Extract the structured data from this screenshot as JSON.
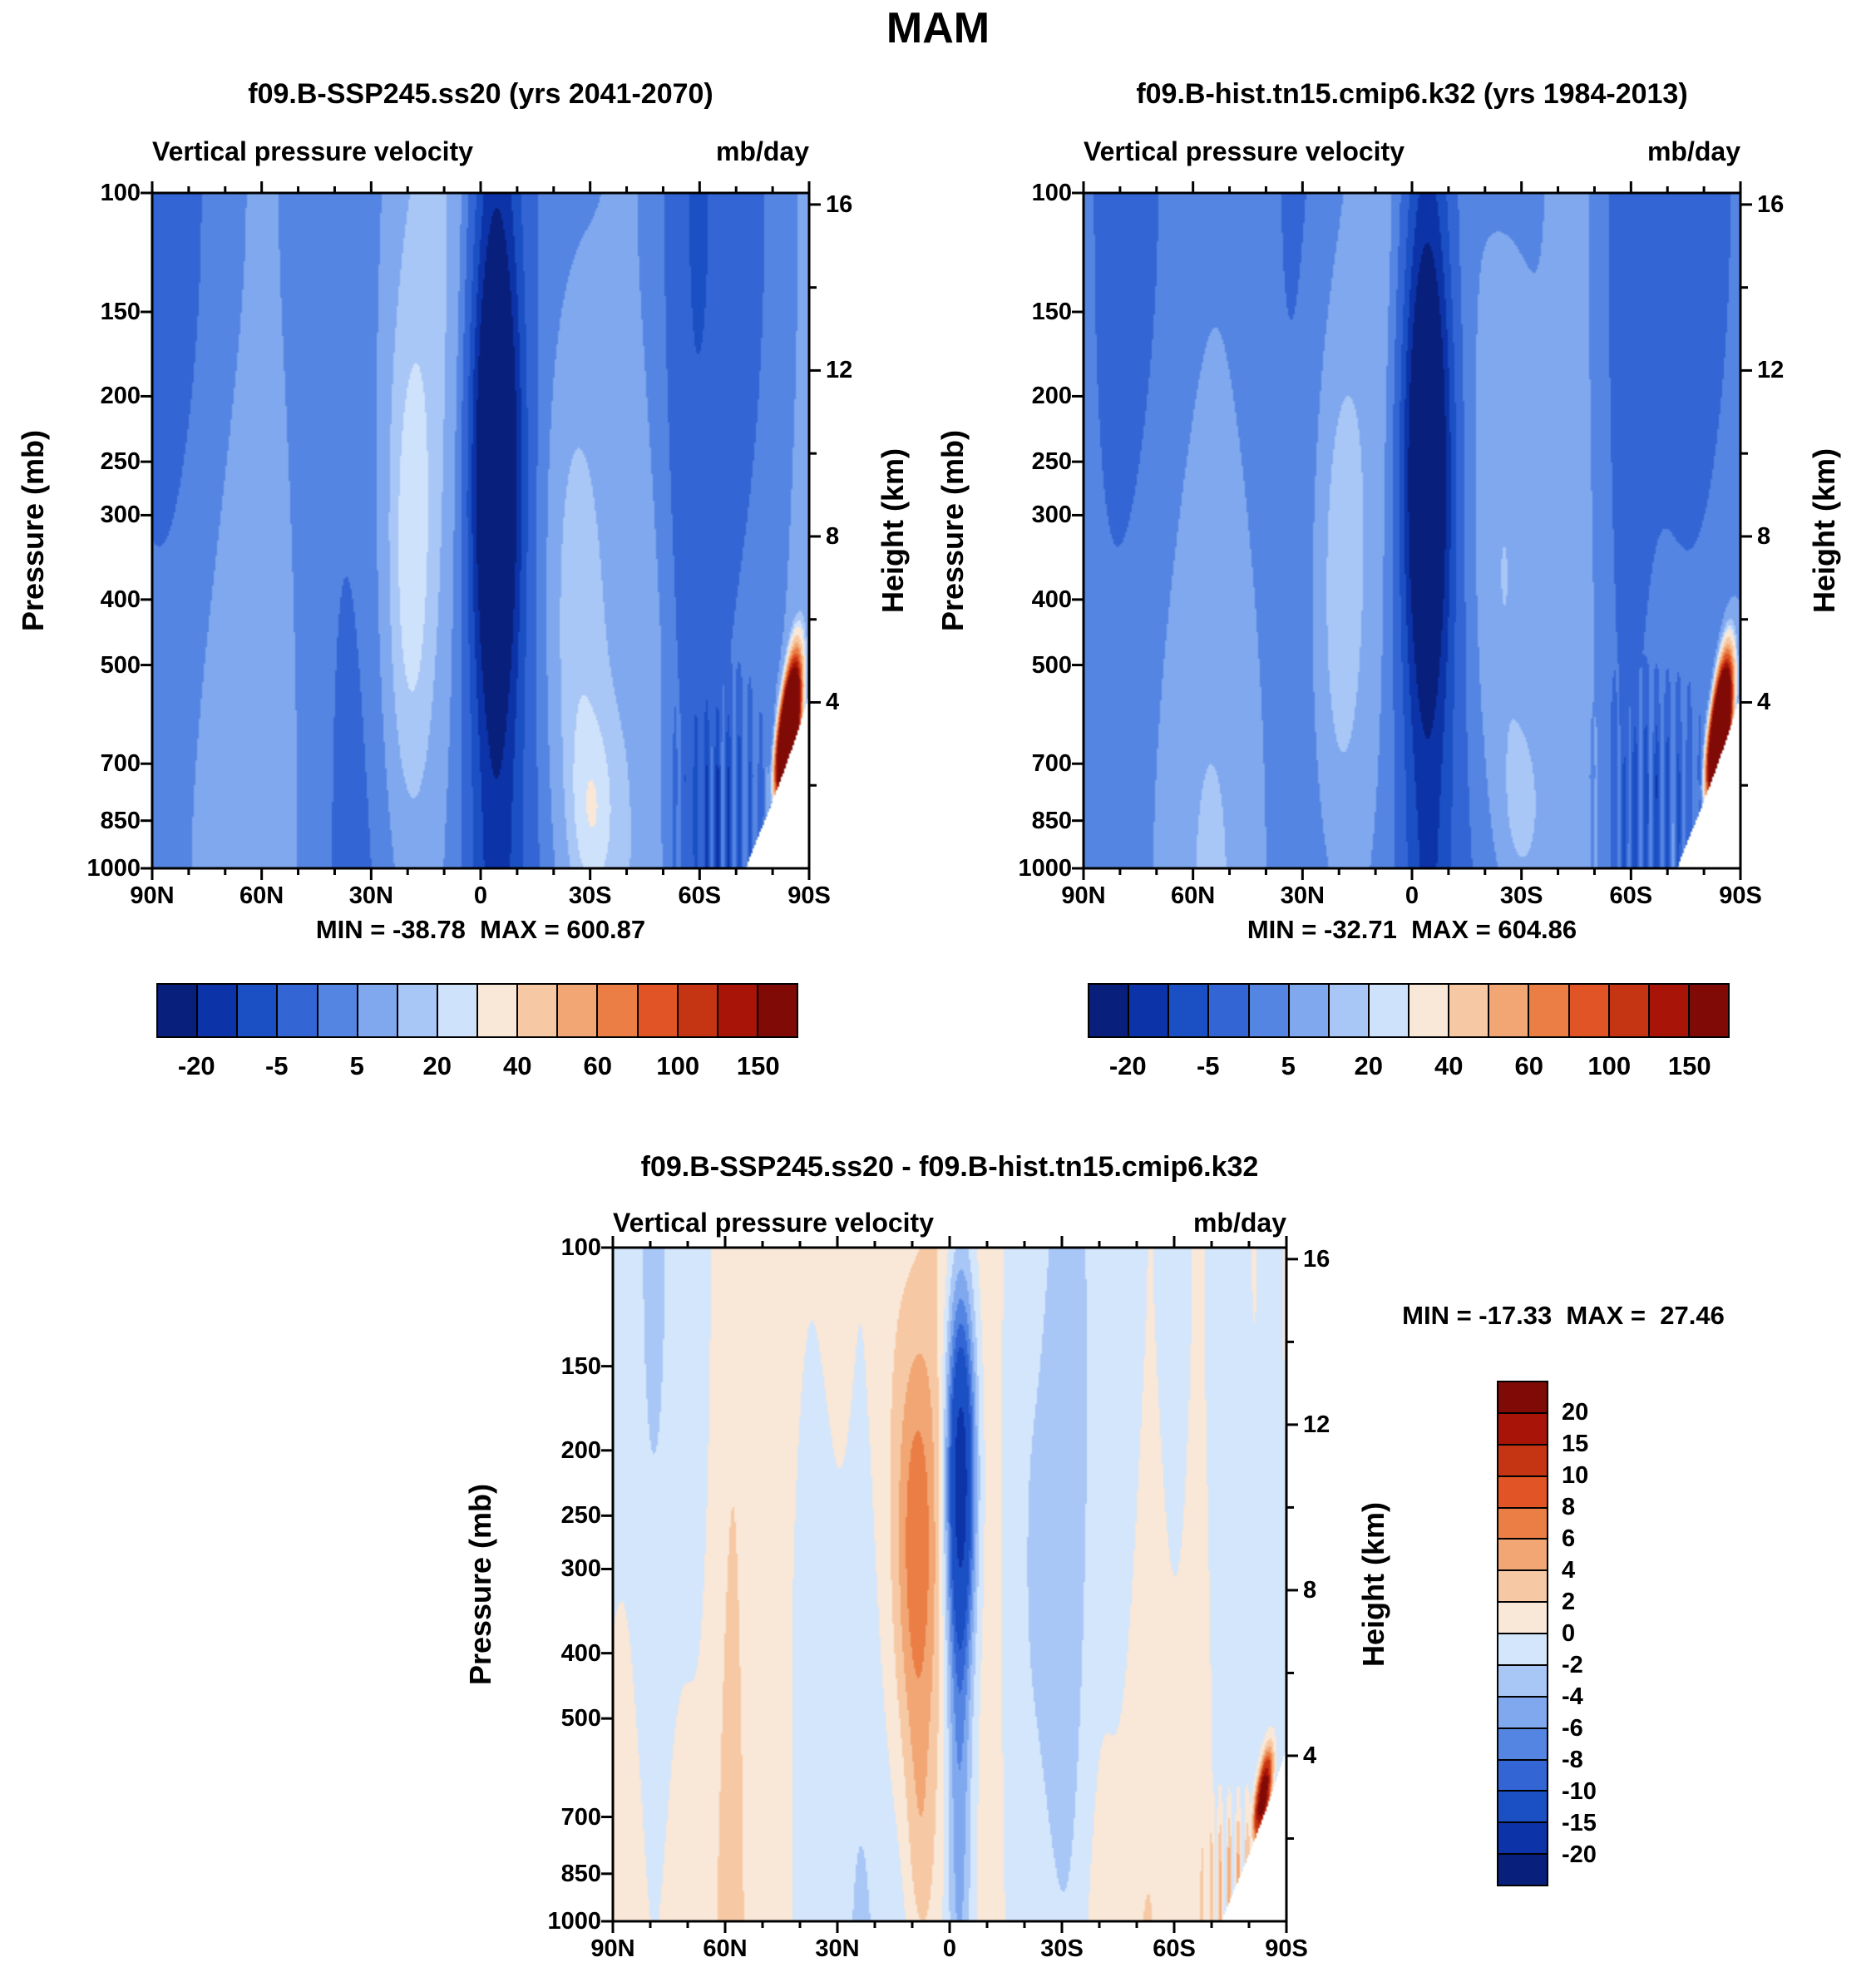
{
  "figure_title": "MAM",
  "panels": [
    {
      "title": "f09.B-SSP245.ss20 (yrs 2041-2070)",
      "subtitle_left": "Vertical pressure velocity",
      "units": "mb/day",
      "ylabel": "Pressure (mb)",
      "ylabel_right": "Height (km)",
      "minmax": "MIN = -38.78  MAX = 600.87"
    },
    {
      "title": "f09.B-hist.tn15.cmip6.k32 (yrs 1984-2013)",
      "subtitle_left": "Vertical pressure velocity",
      "units": "mb/day",
      "ylabel": "Pressure (mb)",
      "ylabel_right": "Height (km)",
      "minmax": "MIN = -32.71  MAX = 604.86"
    },
    {
      "title": "f09.B-SSP245.ss20 - f09.B-hist.tn15.cmip6.k32",
      "subtitle_left": "Vertical pressure velocity",
      "units": "mb/day",
      "ylabel": "Pressure (mb)",
      "ylabel_right": "Height (km)",
      "minmax": "MIN = -17.33  MAX =  27.46"
    }
  ],
  "axes": {
    "pressure_ticks": [
      "100",
      "150",
      "200",
      "250",
      "300",
      "400",
      "500",
      "700",
      "850",
      "1000"
    ],
    "height_ticks": [
      "16",
      "12",
      "8",
      "4"
    ],
    "height_ticks_minor": [
      14,
      10,
      6,
      2
    ],
    "lat_ticks": [
      "90N",
      "60N",
      "30N",
      "0",
      "30S",
      "60S",
      "90S"
    ],
    "lat_minor_step_deg": 10
  },
  "colorbar_main": {
    "labels": [
      "-20",
      "-5",
      "5",
      "20",
      "40",
      "60",
      "100",
      "150"
    ],
    "colors": [
      "#08207c",
      "#0c33a8",
      "#1b4fc4",
      "#3366d4",
      "#5585e2",
      "#7fa8ee",
      "#a8c6f6",
      "#cfe2fb",
      "#f9e7d7",
      "#f6c9a4",
      "#f1a674",
      "#ea7e45",
      "#e05425",
      "#c63513",
      "#a81408",
      "#7f0a06"
    ]
  },
  "colorbar_diff": {
    "labels": [
      "20",
      "15",
      "10",
      "8",
      "6",
      "4",
      "2",
      "0",
      "-2",
      "-4",
      "-6",
      "-8",
      "-10",
      "-15",
      "-20"
    ],
    "colors": [
      "#7f0a06",
      "#a81408",
      "#c63513",
      "#e05425",
      "#ea7e45",
      "#f1a674",
      "#f6c9a4",
      "#f9e7d7",
      "#d4e6fb",
      "#a8c6f6",
      "#7fa8ee",
      "#5585e2",
      "#3366d4",
      "#1b4fc4",
      "#0c33a8",
      "#08207c"
    ]
  },
  "chart_data": [
    {
      "type": "contour",
      "panel": "top-left",
      "season": "MAM",
      "title": "f09.B-SSP245.ss20 (yrs 2041-2070)",
      "variable": "Vertical pressure velocity",
      "units": "mb/day",
      "x": {
        "label": "latitude",
        "ticks": [
          "90N",
          "60N",
          "30N",
          "0",
          "30S",
          "60S",
          "90S"
        ],
        "range_deg": [
          90,
          -90
        ]
      },
      "y_left": {
        "label": "Pressure (mb)",
        "ticks": [
          100,
          150,
          200,
          250,
          300,
          400,
          500,
          700,
          850,
          1000
        ],
        "scale": "log"
      },
      "y_right": {
        "label": "Height (km)",
        "ticks": [
          16,
          12,
          8,
          4
        ]
      },
      "colorbar_tick_labels": [
        -20,
        -5,
        5,
        20,
        40,
        60,
        100,
        150
      ],
      "min": -38.78,
      "max": 600.87,
      "features": [
        "strong ascent band (below -20 mb/day) centered near equator/5S through the whole troposphere, darkest 150-350 mb",
        "very pale weak-motion columns near 20N and 25S",
        "broad weak negative background (-12 to -4 mb/day) elsewhere",
        "darker descending streaks 55-80S below ~500 mb",
        "extreme positive values (greater than 150, max 600.87) near 85S at 650-950 mb beside the white Antarctic terrain wedge"
      ]
    },
    {
      "type": "contour",
      "panel": "top-right",
      "season": "MAM",
      "title": "f09.B-hist.tn15.cmip6.k32 (yrs 1984-2013)",
      "variable": "Vertical pressure velocity",
      "units": "mb/day",
      "x": {
        "label": "latitude",
        "ticks": [
          "90N",
          "60N",
          "30N",
          "0",
          "30S",
          "60S",
          "90S"
        ],
        "range_deg": [
          90,
          -90
        ]
      },
      "y_left": {
        "label": "Pressure (mb)",
        "ticks": [
          100,
          150,
          200,
          250,
          300,
          400,
          500,
          700,
          850,
          1000
        ],
        "scale": "log"
      },
      "y_right": {
        "label": "Height (km)",
        "ticks": [
          16,
          12,
          8,
          4
        ]
      },
      "colorbar_tick_labels": [
        -20,
        -5,
        5,
        20,
        40,
        60,
        100,
        150
      ],
      "min": -32.71,
      "max": 604.86,
      "features": [
        "structure nearly identical to the SSP245 panel",
        "equatorial ascent band below -20 mb/day, pale subtropical columns near 20N and 25S",
        "extreme positive spot (max 604.86) near 85S low levels beside terrain mask"
      ]
    },
    {
      "type": "contour",
      "panel": "bottom-difference",
      "season": "MAM",
      "title": "f09.B-SSP245.ss20 - f09.B-hist.tn15.cmip6.k32",
      "variable": "Vertical pressure velocity",
      "units": "mb/day",
      "x": {
        "label": "latitude",
        "ticks": [
          "90N",
          "60N",
          "30N",
          "0",
          "30S",
          "60S",
          "90S"
        ],
        "range_deg": [
          90,
          -90
        ]
      },
      "y_left": {
        "label": "Pressure (mb)",
        "ticks": [
          100,
          150,
          200,
          250,
          300,
          400,
          500,
          700,
          850,
          1000
        ],
        "scale": "log"
      },
      "y_right": {
        "label": "Height (km)",
        "ticks": [
          16,
          12,
          8,
          4
        ]
      },
      "colorbar_tick_labels": [
        20,
        15,
        10,
        8,
        6,
        4,
        2,
        0,
        -2,
        -4,
        -6,
        -8,
        -10,
        -15,
        -20
      ],
      "min": -17.33,
      "max": 27.46,
      "features": [
        "mostly near-zero pale background (between -2 and +2 mb/day)",
        "positive (orange) column up to ~+10 centered near 10N, strongest 200-400 mb",
        "negative (blue) column down to ~-17 centered near 0-5S, strongest 150-300 mb and extending to the surface",
        "weak negative band 20-40S mid-troposphere",
        "small intense positive spot (max 27.46) near 85S at ~900 mb with adjacent blue specks, beside white terrain wedge"
      ]
    }
  ],
  "render_models": {
    "main": {
      "thresholds": [
        -30,
        -24,
        -18,
        -12,
        -8,
        -4,
        -1,
        2,
        10,
        20,
        30,
        45,
        60,
        80,
        110
      ],
      "mask": {
        "lat_start": -73,
        "span": 17,
        "drop": 440,
        "pow": 0.9
      },
      "components": [
        {
          "t": "const",
          "a": -9
        },
        {
          "t": "wave",
          "a": 3.0,
          "klat": 0.12,
          "ph": 0.4
        },
        {
          "t": "wave2",
          "a": 2.5,
          "klat": 0.045,
          "ph": 1.1,
          "kp": 3.0
        },
        {
          "t": "gauss",
          "a": -15,
          "lat0": -4,
          "sl": 7.5,
          "lp0": 2.7,
          "slp": 9
        },
        {
          "t": "gauss",
          "a": -27,
          "lat0": -4,
          "sl": 6.5,
          "lp0": 2.4,
          "slp": 0.34
        },
        {
          "t": "gauss",
          "a": 9,
          "lat0": 20,
          "sl": 8,
          "lp0": 2.6,
          "slp": 0.45
        },
        {
          "t": "gauss",
          "a": 8.5,
          "lat0": -25,
          "sl": 9,
          "lp0": 2.65,
          "slp": 0.5
        },
        {
          "t": "gauss",
          "a": 6,
          "lat0": -31,
          "sl": 6,
          "lp0": 2.92,
          "slp": 0.14
        },
        {
          "t": "gauss",
          "a": -6,
          "lat0": -58,
          "sl": 8,
          "lp0": 2.5,
          "slp": 9
        },
        {
          "t": "streak",
          "a": -10,
          "lat0": -67,
          "sl": 11,
          "kf": 2.1,
          "pmin": 480
        },
        {
          "t": "spot",
          "a": 900,
          "lat0": -84.5,
          "sl": 2.2,
          "edge": 55,
          "sp": 75
        }
      ]
    },
    "diff": {
      "thresholds": [
        -20,
        -15,
        -10,
        -8,
        -6,
        -4,
        -2,
        0,
        2,
        4,
        6,
        8,
        10,
        15,
        20
      ],
      "mask": {
        "lat_start": -73,
        "span": 17,
        "drop": 440,
        "pow": 0.9
      },
      "components": [
        {
          "t": "wave2",
          "a": 1.3,
          "klat": 0.05,
          "ph": 0.3,
          "kp": 2.5
        },
        {
          "t": "wave",
          "a": 0.8,
          "klat": 0.12,
          "ph": 1.7
        },
        {
          "t": "wave",
          "a": 0.4,
          "klat": 0.45,
          "ph": 0.0
        },
        {
          "t": "gauss",
          "a": 7.5,
          "lat0": 9,
          "sl": 5.5,
          "lp0": 2.46,
          "slp": 0.33
        },
        {
          "t": "gauss",
          "a": 3,
          "lat0": 8,
          "sl": 4,
          "lp0": 2.9,
          "slp": 0.22
        },
        {
          "t": "gauss",
          "a": -16,
          "lat0": -3,
          "sl": 3.8,
          "lp0": 2.33,
          "slp": 0.26
        },
        {
          "t": "gauss",
          "a": -5.5,
          "lat0": -2.5,
          "sl": 3.2,
          "lp0": 2.74,
          "slp": 0.5
        },
        {
          "t": "gauss",
          "a": -2.3,
          "lat0": -28,
          "sl": 10,
          "lp0": 2.65,
          "slp": 0.6
        },
        {
          "t": "gauss",
          "a": 1.6,
          "lat0": 60,
          "sl": 9,
          "lp0": 2.7,
          "slp": 9
        },
        {
          "t": "gauss",
          "a": -1.8,
          "lat0": 36,
          "sl": 7,
          "lp0": 2.54,
          "slp": 0.4
        },
        {
          "t": "streak",
          "a": 5,
          "lat0": -76,
          "sl": 7,
          "kf": 2.6,
          "pmin": 600
        },
        {
          "t": "spot",
          "a": 30,
          "lat0": -84,
          "sl": 2,
          "edge": 50,
          "sp": 60
        }
      ]
    }
  }
}
